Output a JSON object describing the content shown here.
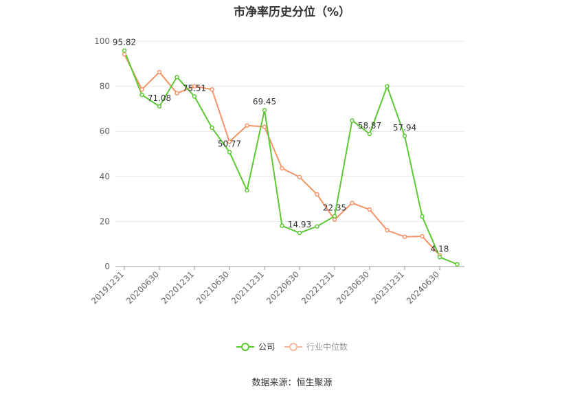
{
  "title": "市净率历史分位（%）",
  "source": "数据来源：恒生聚源",
  "colors": {
    "company": "#5cc832",
    "industry": "#f59366",
    "grid": "#e6e6e6",
    "axis": "#999999"
  },
  "chart_data": {
    "type": "line",
    "title": "市净率历史分位（%）",
    "ylim": [
      0,
      100
    ],
    "yticks": [
      0,
      20,
      40,
      60,
      80,
      100
    ],
    "x": [
      "20191231",
      "20200331",
      "20200630",
      "20200930",
      "20201231",
      "20210331",
      "20210630",
      "20210930",
      "20211231",
      "20220331",
      "20220630",
      "20220930",
      "20221231",
      "20230331",
      "20230630",
      "20230930",
      "20231231",
      "20240331",
      "20240630",
      "20240930"
    ],
    "xtick_labels": [
      "20191231",
      "20200630",
      "20201231",
      "20210630",
      "20211231",
      "20220630",
      "20221231",
      "20230630",
      "20231231",
      "20240630"
    ],
    "series": [
      {
        "name": "公司",
        "color": "#5cc832",
        "values": [
          95.82,
          76.2,
          71.08,
          84.1,
          75.51,
          61.6,
          50.77,
          33.8,
          69.45,
          18.1,
          14.93,
          17.8,
          22.35,
          64.8,
          58.87,
          80.0,
          57.94,
          22.2,
          4.18,
          1.0
        ],
        "labels": [
          "95.82",
          null,
          "71.08",
          null,
          "75.51",
          null,
          "50.77",
          null,
          "69.45",
          null,
          "14.93",
          null,
          "22.35",
          null,
          "58.87",
          null,
          "57.94",
          null,
          "4.18",
          null
        ]
      },
      {
        "name": "行业中位数",
        "color": "#f59366",
        "values": [
          94.2,
          78.6,
          86.3,
          76.9,
          80.0,
          78.6,
          55.4,
          62.6,
          62.0,
          43.6,
          39.7,
          32.0,
          20.8,
          28.2,
          25.3,
          16.1,
          13.2,
          13.4,
          5.0,
          null
        ],
        "labels": []
      }
    ],
    "legend": [
      "公司",
      "行业中位数"
    ],
    "legend_position": "bottom",
    "grid": true
  }
}
